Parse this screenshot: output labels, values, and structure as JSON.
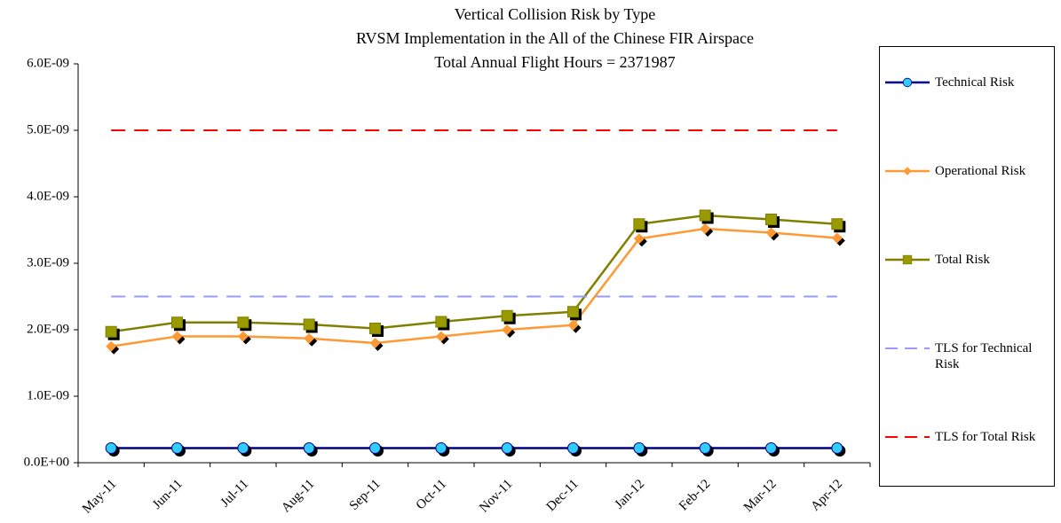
{
  "chart_data": {
    "type": "line",
    "title": [
      "Vertical  Collision  Risk  by Type",
      "RVSM Implementation  in the All  of the Chinese  FIR Airspace",
      "Total Annual  Flight  Hours = 2371987"
    ],
    "categories": [
      "May-11",
      "Jun-11",
      "Jul-11",
      "Aug-11",
      "Sep-11",
      "Oct-11",
      "Nov-11",
      "Dec-11",
      "Jan-12",
      "Feb-12",
      "Mar-12",
      "Apr-12"
    ],
    "series": [
      {
        "name": "Technical Risk",
        "color": "#000080",
        "marker": "circle",
        "marker_color": "#33ccff",
        "dashed": false,
        "values": [
          2.2e-10,
          2.2e-10,
          2.2e-10,
          2.2e-10,
          2.2e-10,
          2.2e-10,
          2.2e-10,
          2.2e-10,
          2.2e-10,
          2.2e-10,
          2.2e-10,
          2.2e-10
        ]
      },
      {
        "name": "Operational Risk",
        "color": "#ff9933",
        "marker": "diamond",
        "marker_color": "#ff9933",
        "dashed": false,
        "values": [
          1.75e-09,
          1.9e-09,
          1.9e-09,
          1.87e-09,
          1.8e-09,
          1.9e-09,
          2e-09,
          2.07e-09,
          3.37e-09,
          3.52e-09,
          3.46e-09,
          3.38e-09
        ]
      },
      {
        "name": "Total Risk",
        "color": "#808000",
        "marker": "square",
        "marker_color": "#999900",
        "dashed": false,
        "values": [
          1.97e-09,
          2.11e-09,
          2.11e-09,
          2.08e-09,
          2.02e-09,
          2.12e-09,
          2.21e-09,
          2.27e-09,
          3.59e-09,
          3.72e-09,
          3.66e-09,
          3.59e-09
        ]
      },
      {
        "name": "TLS for Technical Risk",
        "color": "#9999ff",
        "marker": "none",
        "marker_color": "#9999ff",
        "dashed": true,
        "values": [
          2.5e-09,
          2.5e-09,
          2.5e-09,
          2.5e-09,
          2.5e-09,
          2.5e-09,
          2.5e-09,
          2.5e-09,
          2.5e-09,
          2.5e-09,
          2.5e-09,
          2.5e-09
        ]
      },
      {
        "name": "TLS for Total Risk",
        "color": "#ff0000",
        "marker": "none",
        "marker_color": "#ff0000",
        "dashed": true,
        "values": [
          5e-09,
          5e-09,
          5e-09,
          5e-09,
          5e-09,
          5e-09,
          5e-09,
          5e-09,
          5e-09,
          5e-09,
          5e-09,
          5e-09
        ]
      }
    ],
    "ylim": [
      0,
      6e-09
    ],
    "yticks": [
      {
        "value": 0,
        "label": "0.0E+00"
      },
      {
        "value": 1e-09,
        "label": "1.0E-09"
      },
      {
        "value": 2e-09,
        "label": "2.0E-09"
      },
      {
        "value": 3e-09,
        "label": "3.0E-09"
      },
      {
        "value": 4e-09,
        "label": "4.0E-09"
      },
      {
        "value": 5e-09,
        "label": "5.0E-09"
      },
      {
        "value": 6e-09,
        "label": "6.0E-09"
      }
    ],
    "grid": false,
    "legend": "right"
  }
}
